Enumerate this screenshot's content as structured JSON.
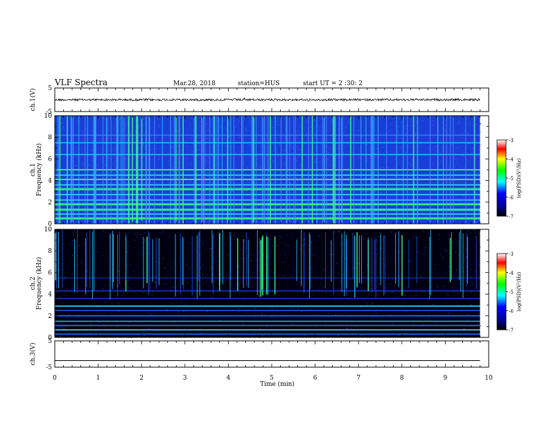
{
  "header": {
    "title": "VLF Spectra",
    "date": "Mar.28, 2018",
    "station": "station=HUS",
    "start": "start UT =  2 :30: 2"
  },
  "chart_data": [
    {
      "type": "line",
      "name": "ch1-waveform",
      "ylabel": "ch.1(V)",
      "ylim": [
        -5,
        5
      ],
      "yticks": [
        "5",
        "-5"
      ],
      "xlim": [
        0,
        10
      ],
      "baseline": 0
    },
    {
      "type": "heatmap",
      "name": "ch1-spectrogram",
      "ylabel": "ch.1\nFrequency (kHz)",
      "ylim": [
        0,
        10
      ],
      "yticks": [
        "0",
        "2",
        "4",
        "6",
        "8",
        "10"
      ],
      "xlim": [
        0,
        10
      ],
      "data_end_min": 9.8,
      "colorbar": {
        "label": "log(PSD)(V²/Hz)",
        "range": [
          -7,
          -3
        ],
        "ticks": [
          "-3",
          "-4",
          "-5",
          "-6",
          "-7"
        ]
      }
    },
    {
      "type": "heatmap",
      "name": "ch2-spectrogram",
      "ylabel": "ch.2\nFrequency (kHz)",
      "ylim": [
        0,
        10
      ],
      "yticks": [
        "0",
        "2",
        "4",
        "6",
        "8",
        "10"
      ],
      "xlim": [
        0,
        10
      ],
      "data_end_min": 9.8,
      "colorbar": {
        "label": "log(PSD)(V²/Hz)",
        "range": [
          -7,
          -3
        ],
        "ticks": [
          "-3",
          "-4",
          "-5",
          "-6",
          "-7"
        ]
      }
    },
    {
      "type": "line",
      "name": "ch3-waveform",
      "ylabel": "ch.3(V)",
      "ylim": [
        -5,
        5
      ],
      "yticks": [
        "5",
        "-5"
      ],
      "xlim": [
        0,
        10
      ],
      "baseline": -2.5
    }
  ],
  "xaxis": {
    "label": "Time (min)",
    "ticks": [
      "0",
      "1",
      "2",
      "3",
      "4",
      "5",
      "6",
      "7",
      "8",
      "9",
      "10"
    ]
  },
  "colors": {
    "ch1_background": "#1a3fd8",
    "ch2_background": "#000010",
    "band_cyan": "#30d0ff",
    "band_green": "#30ff80"
  }
}
